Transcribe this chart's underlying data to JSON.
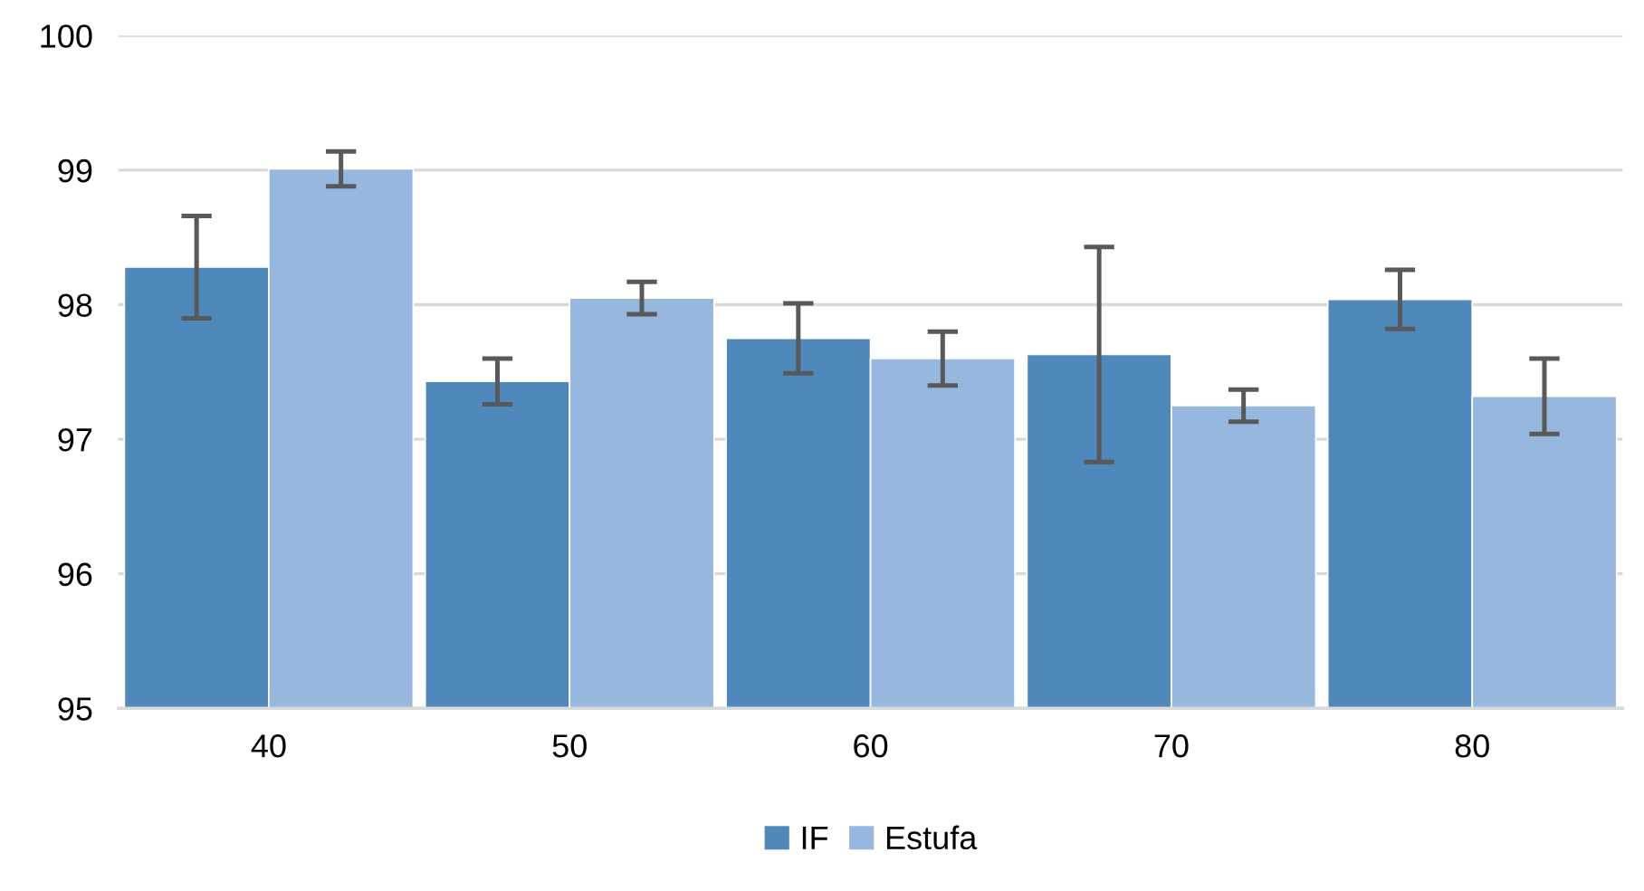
{
  "chart_data": {
    "type": "bar",
    "categories": [
      "40",
      "50",
      "60",
      "70",
      "80"
    ],
    "series": [
      {
        "name": "IF",
        "color": "#4f88bb",
        "values": [
          98.28,
          97.43,
          97.75,
          97.63,
          98.04
        ],
        "errors": [
          0.38,
          0.17,
          0.26,
          0.8,
          0.22
        ]
      },
      {
        "name": "Estufa",
        "color": "#97b8de",
        "values": [
          99.01,
          98.05,
          97.6,
          97.25,
          97.32
        ],
        "errors": [
          0.13,
          0.12,
          0.2,
          0.12,
          0.28
        ]
      }
    ],
    "ylim": [
      95,
      100
    ],
    "yticks": [
      95,
      96,
      97,
      98,
      99,
      100
    ],
    "grid": "y",
    "legend": "bottom"
  }
}
